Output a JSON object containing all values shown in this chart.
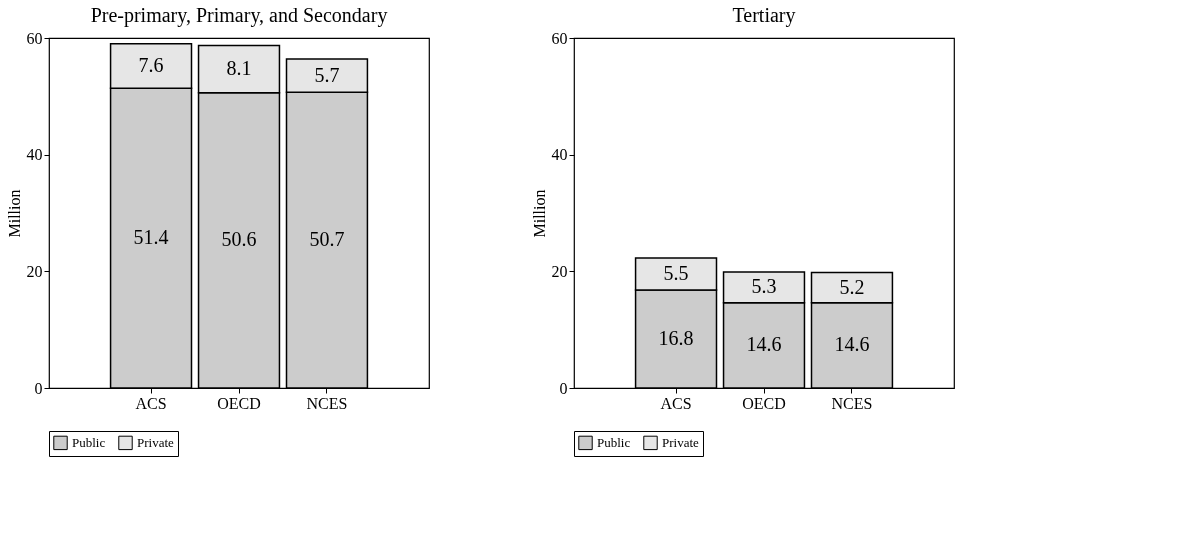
{
  "chart_data": [
    {
      "type": "bar",
      "title": "Pre-primary, Primary, and Secondary",
      "ylabel": "Million",
      "categories": [
        "ACS",
        "OECD",
        "NCES"
      ],
      "stacked": true,
      "data_labels": true,
      "legend": "bottom",
      "ylim": [
        0,
        60
      ],
      "yticks": [
        0,
        20,
        40,
        60
      ],
      "series": [
        {
          "name": "Public",
          "color": "#cccccc",
          "values": [
            51.4,
            50.6,
            50.7
          ]
        },
        {
          "name": "Private",
          "color": "#e6e6e6",
          "values": [
            7.6,
            8.1,
            5.7
          ]
        }
      ]
    },
    {
      "type": "bar",
      "title": "Tertiary",
      "ylabel": "Million",
      "categories": [
        "ACS",
        "OECD",
        "NCES"
      ],
      "stacked": true,
      "data_labels": true,
      "legend": "bottom",
      "ylim": [
        0,
        60
      ],
      "yticks": [
        0,
        20,
        40,
        60
      ],
      "series": [
        {
          "name": "Public",
          "color": "#cccccc",
          "values": [
            16.8,
            14.6,
            14.6
          ]
        },
        {
          "name": "Private",
          "color": "#e6e6e6",
          "values": [
            5.5,
            5.3,
            5.2
          ]
        }
      ]
    }
  ]
}
